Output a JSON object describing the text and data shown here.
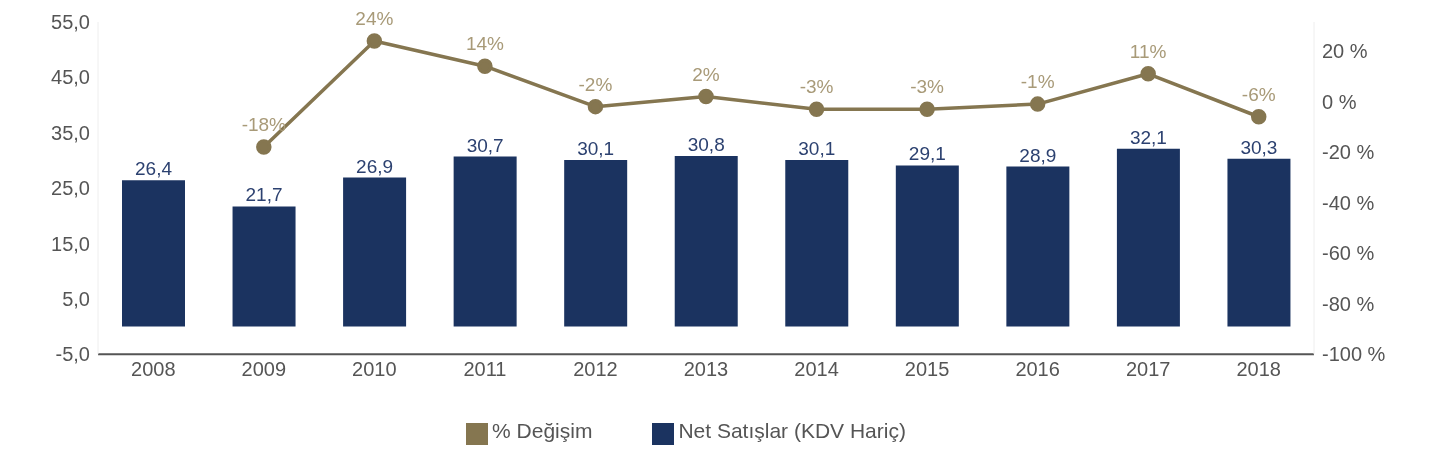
{
  "chart_data": {
    "type": "bar",
    "categories": [
      "2008",
      "2009",
      "2010",
      "2011",
      "2012",
      "2013",
      "2014",
      "2015",
      "2016",
      "2017",
      "2018"
    ],
    "series": [
      {
        "name": "Net Satışlar (KDV Hariç)",
        "color": "#1b3360",
        "values": [
          26.4,
          21.7,
          26.9,
          30.7,
          30.1,
          30.8,
          30.1,
          29.1,
          28.9,
          32.1,
          30.3
        ],
        "value_labels": [
          "26,4",
          "21,7",
          "26,9",
          "30,7",
          "30,1",
          "30,8",
          "30,1",
          "29,1",
          "28,9",
          "32,1",
          "30,3"
        ]
      },
      {
        "name": "% Değişim",
        "type": "line",
        "axis": "y2",
        "color": "#857650",
        "marker": "circle",
        "values": [
          null,
          -18,
          24,
          14,
          -2,
          2,
          -3,
          -3,
          -1,
          11,
          -6
        ],
        "value_labels": [
          null,
          "-18%",
          "24%",
          "14%",
          "-2%",
          "2%",
          "-3%",
          "-3%",
          "-1%",
          "11%",
          "-6%"
        ]
      }
    ],
    "ylim": [
      -5,
      55
    ],
    "yticks": [
      {
        "value": -5,
        "label": "-5,0"
      },
      {
        "value": 5,
        "label": "5,0"
      },
      {
        "value": 15,
        "label": "15,0"
      },
      {
        "value": 25,
        "label": "25,0"
      },
      {
        "value": 35,
        "label": "35,0"
      },
      {
        "value": 45,
        "label": "45,0"
      },
      {
        "value": 55,
        "label": "55,0"
      }
    ],
    "y2lim": [
      -100,
      31.5
    ],
    "y2ticks": [
      {
        "value": -100,
        "label": "-100 %"
      },
      {
        "value": -80,
        "label": "-80 %"
      },
      {
        "value": -60,
        "label": "-60 %"
      },
      {
        "value": -40,
        "label": "-40 %"
      },
      {
        "value": -20,
        "label": "-20 %"
      },
      {
        "value": 0,
        "label": "0 %"
      },
      {
        "value": 20,
        "label": "20 %"
      }
    ],
    "grid": false,
    "legend": "bottom"
  }
}
